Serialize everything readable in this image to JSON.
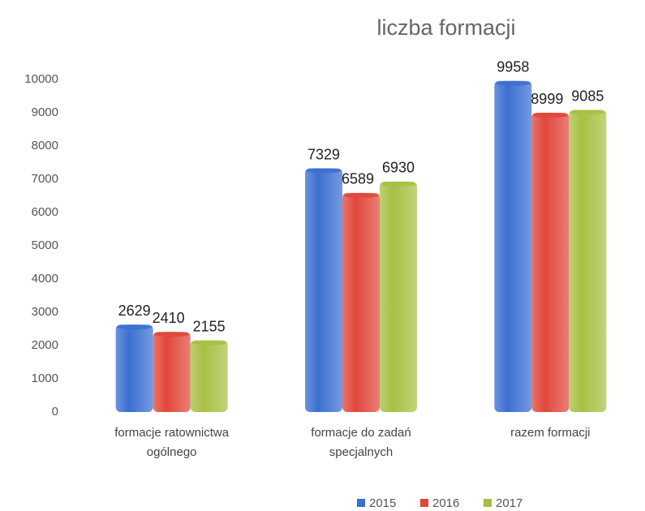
{
  "chart_data": {
    "type": "bar",
    "title": "liczba formacji",
    "categories": [
      "formacje ratownictwa ogólnego",
      "formacje do zadań specjalnych",
      "razem formacji"
    ],
    "series": [
      {
        "name": "2015",
        "color": "#3b6fd1",
        "values": [
          2629,
          7329,
          9958
        ]
      },
      {
        "name": "2016",
        "color": "#e1473b",
        "values": [
          2410,
          6589,
          8999
        ]
      },
      {
        "name": "2017",
        "color": "#a7c043",
        "values": [
          2155,
          6930,
          9085
        ]
      }
    ],
    "ylim": [
      0,
      10000
    ],
    "yticks": [
      0,
      1000,
      2000,
      3000,
      4000,
      5000,
      6000,
      7000,
      8000,
      9000,
      10000
    ],
    "legend": "bottom"
  }
}
